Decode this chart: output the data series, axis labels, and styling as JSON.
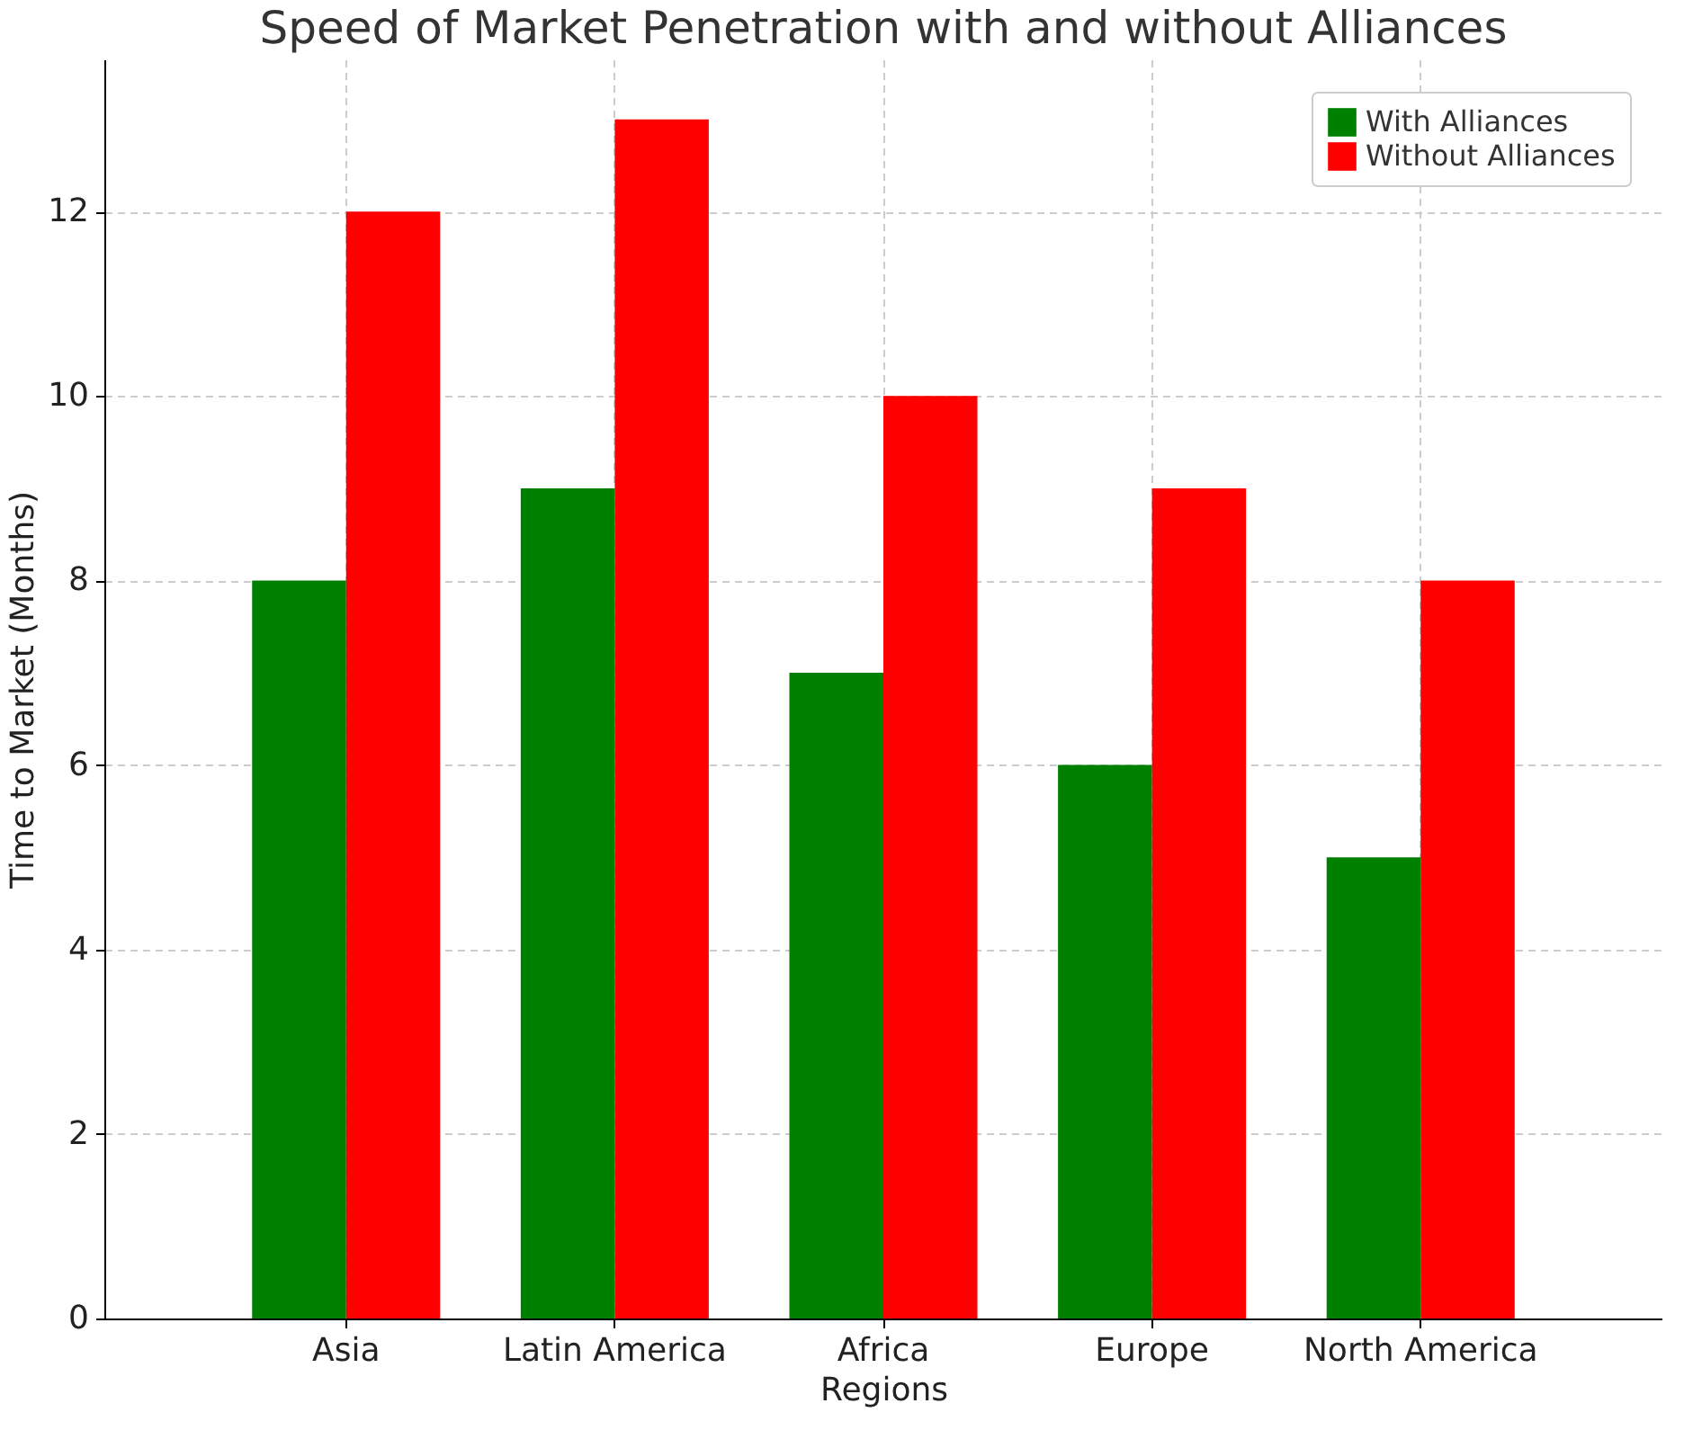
{
  "chart_data": {
    "type": "bar",
    "title": "Speed of Market Penetration with and without Alliances",
    "xlabel": "Regions",
    "ylabel": "Time to Market (Months)",
    "categories": [
      "Asia",
      "Latin America",
      "Africa",
      "Europe",
      "North America"
    ],
    "series": [
      {
        "name": "With Alliances",
        "color": "#008000",
        "values": [
          8,
          9,
          7,
          6,
          5
        ]
      },
      {
        "name": "Without Alliances",
        "color": "#ff0000",
        "values": [
          12,
          13,
          10,
          9,
          8
        ]
      }
    ],
    "ylim": [
      0,
      13.65
    ],
    "yticks": [
      0,
      2,
      4,
      6,
      8,
      10,
      12
    ],
    "grid": true,
    "legend": "top right"
  }
}
